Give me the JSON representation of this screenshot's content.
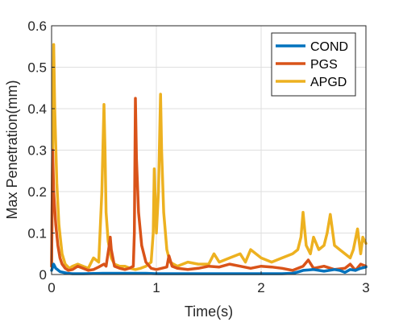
{
  "chart_data": {
    "type": "line",
    "title": "",
    "xlabel": "Time(s)",
    "ylabel": "Max Penetration(mm)",
    "xlim": [
      0,
      3
    ],
    "ylim": [
      0,
      0.6
    ],
    "xticks": [
      0,
      1,
      2,
      3
    ],
    "yticks": [
      0,
      0.1,
      0.2,
      0.3,
      0.4,
      0.5,
      0.6
    ],
    "grid": true,
    "legend_position": "top-right",
    "series": [
      {
        "name": "COND",
        "color": "#0072BD",
        "x": [
          0,
          0.02,
          0.04,
          0.08,
          0.15,
          0.2,
          0.3,
          0.5,
          0.7,
          0.9,
          1.0,
          1.2,
          1.4,
          1.6,
          1.8,
          2.0,
          2.2,
          2.3,
          2.35,
          2.4,
          2.5,
          2.6,
          2.7,
          2.75,
          2.8,
          2.85,
          2.9,
          2.95,
          3.0
        ],
        "y": [
          0.01,
          0.025,
          0.015,
          0.007,
          0.003,
          0.002,
          0.002,
          0.003,
          0.003,
          0.003,
          0.002,
          0.002,
          0.002,
          0.002,
          0.002,
          0.002,
          0.002,
          0.003,
          0.006,
          0.01,
          0.012,
          0.008,
          0.012,
          0.01,
          0.005,
          0.012,
          0.01,
          0.015,
          0.018
        ]
      },
      {
        "name": "PGS",
        "color": "#D95319",
        "x": [
          0,
          0.01,
          0.02,
          0.04,
          0.06,
          0.08,
          0.1,
          0.13,
          0.16,
          0.2,
          0.25,
          0.3,
          0.35,
          0.4,
          0.45,
          0.5,
          0.52,
          0.55,
          0.56,
          0.57,
          0.6,
          0.65,
          0.7,
          0.74,
          0.78,
          0.79,
          0.8,
          0.81,
          0.83,
          0.86,
          0.9,
          0.95,
          1.0,
          1.05,
          1.1,
          1.12,
          1.15,
          1.2,
          1.3,
          1.4,
          1.5,
          1.6,
          1.7,
          1.8,
          1.9,
          2.0,
          2.1,
          2.2,
          2.3,
          2.4,
          2.45,
          2.5,
          2.6,
          2.7,
          2.8,
          2.85,
          2.9,
          2.95,
          3.0
        ],
        "y": [
          0.02,
          0.3,
          0.2,
          0.12,
          0.07,
          0.04,
          0.025,
          0.015,
          0.01,
          0.012,
          0.02,
          0.015,
          0.01,
          0.012,
          0.018,
          0.025,
          0.02,
          0.07,
          0.09,
          0.06,
          0.02,
          0.015,
          0.012,
          0.015,
          0.02,
          0.1,
          0.425,
          0.28,
          0.15,
          0.07,
          0.03,
          0.015,
          0.012,
          0.015,
          0.018,
          0.045,
          0.02,
          0.015,
          0.012,
          0.015,
          0.02,
          0.018,
          0.025,
          0.02,
          0.015,
          0.02,
          0.018,
          0.015,
          0.01,
          0.02,
          0.035,
          0.015,
          0.02,
          0.012,
          0.015,
          0.025,
          0.01,
          0.025,
          0.02
        ]
      },
      {
        "name": "APGD",
        "color": "#EDB120",
        "x": [
          0,
          0.01,
          0.02,
          0.03,
          0.05,
          0.07,
          0.1,
          0.13,
          0.17,
          0.2,
          0.25,
          0.3,
          0.35,
          0.4,
          0.45,
          0.48,
          0.5,
          0.51,
          0.52,
          0.54,
          0.57,
          0.6,
          0.65,
          0.7,
          0.75,
          0.8,
          0.85,
          0.9,
          0.95,
          0.97,
          0.98,
          1.0,
          1.02,
          1.04,
          1.05,
          1.07,
          1.1,
          1.13,
          1.2,
          1.3,
          1.4,
          1.5,
          1.55,
          1.6,
          1.7,
          1.8,
          1.85,
          1.9,
          2.0,
          2.1,
          2.2,
          2.3,
          2.35,
          2.38,
          2.4,
          2.43,
          2.47,
          2.5,
          2.55,
          2.6,
          2.63,
          2.66,
          2.7,
          2.75,
          2.8,
          2.85,
          2.88,
          2.92,
          2.95,
          2.97,
          3.0
        ],
        "y": [
          0.02,
          0.3,
          0.555,
          0.4,
          0.22,
          0.12,
          0.05,
          0.025,
          0.015,
          0.02,
          0.025,
          0.02,
          0.015,
          0.04,
          0.03,
          0.2,
          0.41,
          0.3,
          0.15,
          0.08,
          0.04,
          0.025,
          0.02,
          0.02,
          0.015,
          0.012,
          0.015,
          0.02,
          0.03,
          0.1,
          0.255,
          0.1,
          0.2,
          0.435,
          0.3,
          0.15,
          0.06,
          0.03,
          0.02,
          0.03,
          0.025,
          0.025,
          0.05,
          0.03,
          0.04,
          0.05,
          0.03,
          0.06,
          0.04,
          0.03,
          0.04,
          0.05,
          0.06,
          0.09,
          0.15,
          0.07,
          0.05,
          0.09,
          0.06,
          0.07,
          0.1,
          0.145,
          0.07,
          0.06,
          0.05,
          0.04,
          0.06,
          0.11,
          0.05,
          0.09,
          0.075
        ]
      }
    ]
  }
}
